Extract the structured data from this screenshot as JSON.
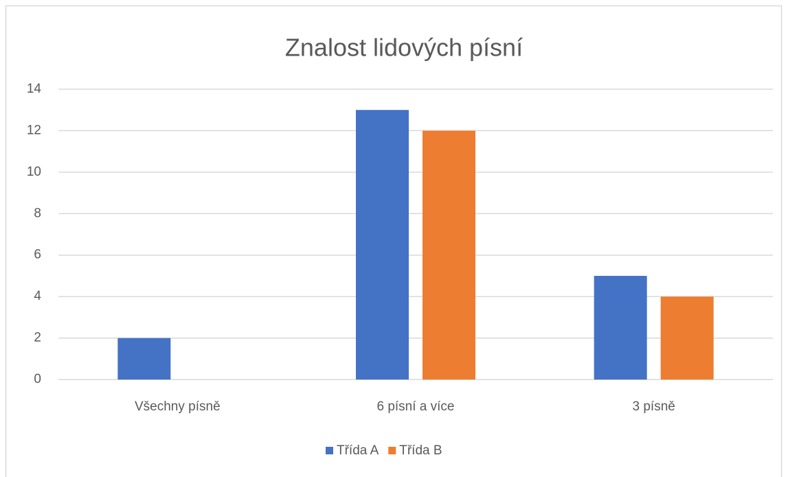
{
  "chart_data": {
    "type": "bar",
    "title": "Znalost lidových písní",
    "categories": [
      "Všechny písně",
      "6 písní a více",
      "3 písně"
    ],
    "series": [
      {
        "name": "Třída A",
        "color": "#4472c4",
        "values": [
          2,
          13,
          5
        ]
      },
      {
        "name": "Třída B",
        "color": "#ed7d31",
        "values": [
          0,
          12,
          4
        ]
      }
    ],
    "ylim": [
      0,
      14
    ],
    "yticks": [
      0,
      2,
      4,
      6,
      8,
      10,
      12,
      14
    ],
    "grid": true,
    "legend": "bottom"
  }
}
